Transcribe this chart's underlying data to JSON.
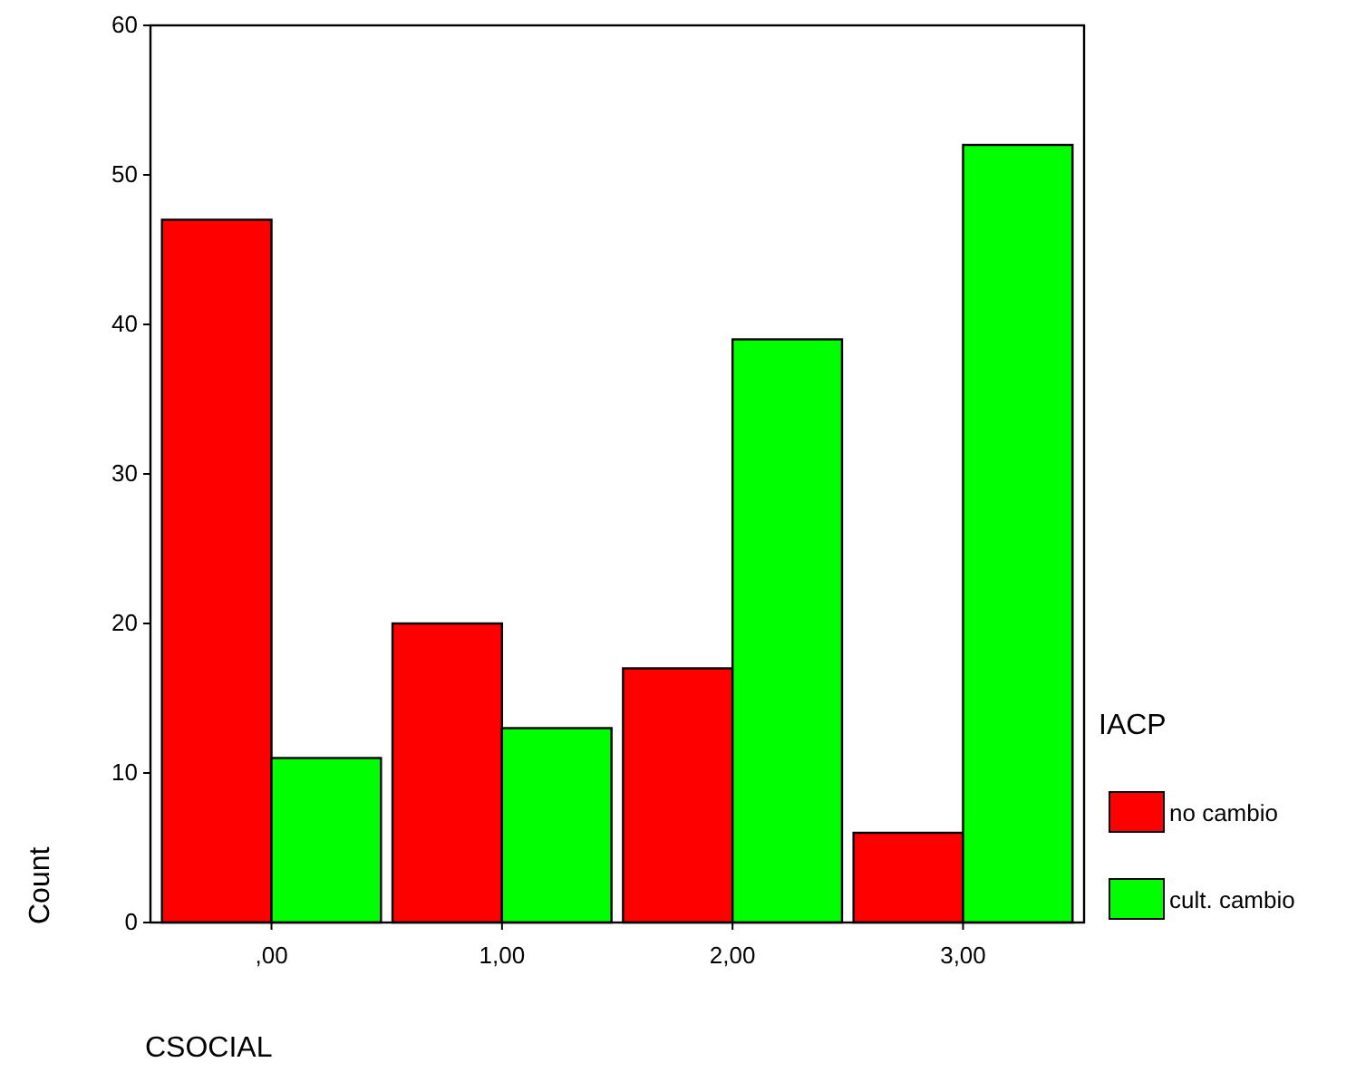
{
  "chart_data": {
    "type": "bar",
    "xlabel": "CSOCIAL",
    "ylabel": "Count",
    "legend_title": "IACP",
    "categories": [
      ",00",
      "1,00",
      "2,00",
      "3,00"
    ],
    "series": [
      {
        "name": "no cambio",
        "color": "#ff0000",
        "values": [
          47,
          20,
          17,
          6
        ]
      },
      {
        "name": "cult. cambio",
        "color": "#00ff00",
        "values": [
          11,
          13,
          39,
          52
        ]
      }
    ],
    "ylim": [
      0,
      60
    ],
    "yticks": [
      0,
      10,
      20,
      30,
      40,
      50,
      60
    ],
    "grid": false,
    "legend": "right"
  }
}
